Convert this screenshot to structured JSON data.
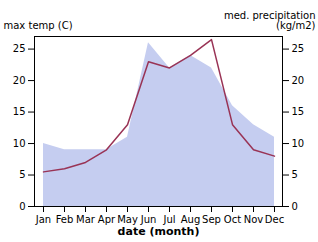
{
  "chart_data": {
    "type": "line",
    "categories": [
      "Jan",
      "Feb",
      "Mar",
      "Apr",
      "May",
      "Jun",
      "Jul",
      "Aug",
      "Sep",
      "Oct",
      "Nov",
      "Dec"
    ],
    "series": [
      {
        "type": "area",
        "color": "#c5cdf0",
        "values": [
          10.0,
          9.0,
          9.0,
          9.0,
          11.0,
          26.0,
          22.0,
          24.0,
          22.0,
          16.0,
          13.0,
          11.0
        ]
      },
      {
        "type": "line",
        "color": "#993355",
        "values": [
          5.5,
          6.0,
          7.0,
          9.0,
          13.0,
          23.0,
          22.0,
          24.0,
          26.5,
          13.0,
          9.0,
          8.0
        ]
      }
    ],
    "xlabel": "date (month)",
    "ylabel": "max temp (C)",
    "y2label": "med. precipitation\n(kg/m2)",
    "ylim": [
      0,
      27
    ],
    "yticks": [
      0,
      5,
      10,
      15,
      20,
      25
    ],
    "y2lim": [
      0,
      27
    ],
    "y2ticks": [
      0,
      5,
      10,
      15,
      20,
      25
    ]
  }
}
